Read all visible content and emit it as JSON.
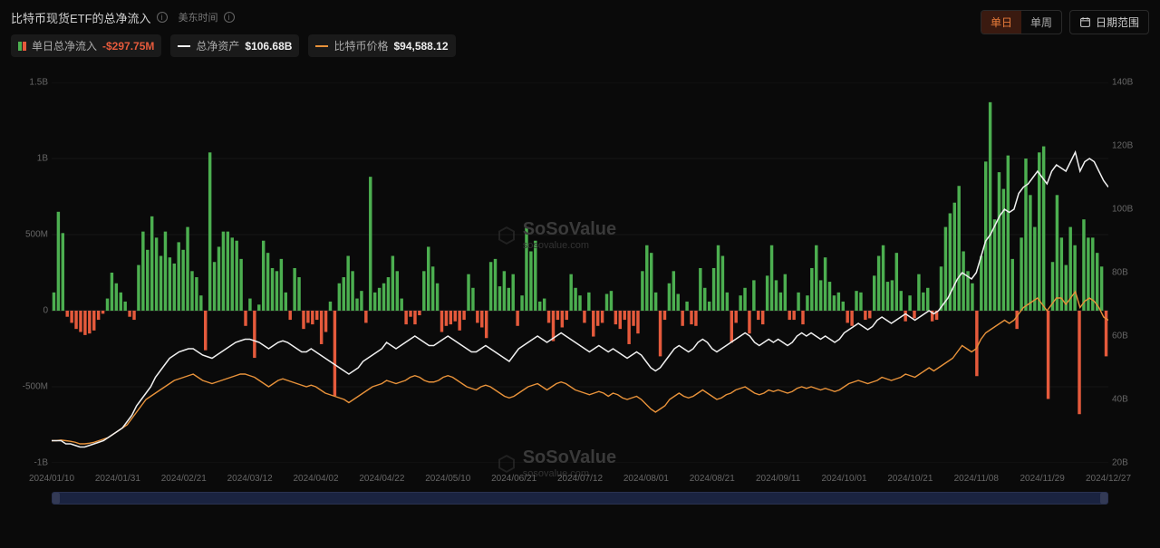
{
  "header": {
    "title": "比特币现货ETF的总净流入",
    "subtitle": "美东时间",
    "seg_daily": "单日",
    "seg_weekly": "单周",
    "range_label": "日期范围"
  },
  "legend": {
    "netflow_label": "单日总净流入",
    "netflow_value": "-$297.75M",
    "assets_label": "总净资产",
    "assets_value": "$106.68B",
    "price_label": "比特币价格",
    "price_value": "$94,588.12"
  },
  "chart": {
    "type": "bar+line-dual-axis",
    "background_color": "#0a0a0a",
    "grid_color": "#222222",
    "bar_pos_color": "#4caf50",
    "bar_neg_color": "#e55a3c",
    "line_assets_color": "#f0f0f0",
    "line_price_color": "#e8923a",
    "left_axis": {
      "label_color": "#666",
      "ticks": [
        {
          "v": 1500000000,
          "label": "1.5B"
        },
        {
          "v": 1000000000,
          "label": "1B"
        },
        {
          "v": 500000000,
          "label": "500M"
        },
        {
          "v": 0,
          "label": "0"
        },
        {
          "v": -500000000,
          "label": "-500M"
        },
        {
          "v": -1000000000,
          "label": "-1B"
        }
      ],
      "min": -1000000000,
      "max": 1500000000
    },
    "right_axis": {
      "label_color": "#666",
      "ticks": [
        {
          "v": 140000000000,
          "label": "140B"
        },
        {
          "v": 120000000000,
          "label": "120B"
        },
        {
          "v": 100000000000,
          "label": "100B"
        },
        {
          "v": 80000000000,
          "label": "80B"
        },
        {
          "v": 60000000000,
          "label": "60B"
        },
        {
          "v": 40000000000,
          "label": "40B"
        },
        {
          "v": 20000000000,
          "label": "20B"
        }
      ],
      "min": 20000000000,
      "max": 140000000000
    },
    "x_axis": {
      "labels": [
        "2024/01/10",
        "2024/01/31",
        "2024/02/21",
        "2024/03/12",
        "2024/04/02",
        "2024/04/22",
        "2024/05/10",
        "2024/06/21",
        "2024/07/12",
        "2024/08/01",
        "2024/08/21",
        "2024/09/11",
        "2024/10/01",
        "2024/10/21",
        "2024/11/08",
        "2024/11/29",
        "2024/12/27"
      ]
    },
    "bars": [
      120,
      650,
      510,
      -40,
      -80,
      -120,
      -140,
      -160,
      -150,
      -130,
      -60,
      -20,
      80,
      250,
      180,
      120,
      60,
      -40,
      -60,
      300,
      520,
      400,
      620,
      480,
      360,
      520,
      350,
      310,
      450,
      400,
      550,
      260,
      220,
      100,
      -260,
      1040,
      320,
      420,
      520,
      520,
      480,
      460,
      340,
      -100,
      80,
      -310,
      40,
      460,
      380,
      280,
      260,
      340,
      120,
      -60,
      280,
      220,
      -120,
      -80,
      -90,
      -60,
      -220,
      -140,
      60,
      -560,
      180,
      220,
      360,
      260,
      80,
      130,
      -80,
      880,
      120,
      150,
      180,
      220,
      360,
      260,
      80,
      -90,
      -40,
      -90,
      -30,
      260,
      420,
      290,
      180,
      -140,
      -100,
      -90,
      -70,
      -130,
      -60,
      240,
      150,
      -80,
      -110,
      -180,
      320,
      340,
      160,
      260,
      150,
      240,
      -100,
      100,
      550,
      390,
      460,
      60,
      80,
      -80,
      -200,
      -60,
      -110,
      -60,
      240,
      150,
      100,
      -80,
      120,
      -170,
      -100,
      -80,
      110,
      130,
      -90,
      -120,
      -60,
      -220,
      -100,
      -150,
      260,
      430,
      380,
      120,
      -300,
      -60,
      180,
      260,
      110,
      -100,
      60,
      -90,
      -100,
      280,
      150,
      60,
      280,
      430,
      360,
      120,
      -210,
      -80,
      100,
      150,
      -150,
      200,
      -60,
      -90,
      230,
      430,
      200,
      120,
      240,
      -60,
      -60,
      120,
      -90,
      100,
      280,
      430,
      200,
      350,
      190,
      100,
      120,
      60,
      -80,
      -100,
      130,
      120,
      -60,
      -50,
      230,
      360,
      430,
      190,
      200,
      380,
      130,
      -70,
      100,
      -50,
      240,
      120,
      150,
      -70,
      -60,
      290,
      550,
      640,
      710,
      820,
      390,
      260,
      180,
      -430,
      360,
      980,
      1370,
      600,
      910,
      800,
      1020,
      340,
      -120,
      480,
      1000,
      760,
      550,
      1040,
      1080,
      -580,
      320,
      760,
      480,
      300,
      550,
      430,
      -680,
      600,
      480,
      480,
      380,
      290,
      -300
    ],
    "line_assets": [
      27,
      27,
      27,
      26,
      26,
      25.5,
      25,
      25,
      25.5,
      26,
      26.5,
      27,
      28,
      29,
      30,
      31,
      33,
      35,
      38,
      40,
      42,
      44,
      47,
      49,
      51,
      53,
      54,
      55,
      55.5,
      56,
      56,
      55,
      54,
      53.5,
      53,
      54,
      55,
      56,
      57,
      58,
      58.5,
      59,
      59,
      58.5,
      58,
      57,
      56,
      57,
      58,
      58.5,
      58,
      57,
      56,
      55,
      55,
      56,
      55,
      54,
      53,
      52,
      51,
      50,
      49,
      48,
      49,
      50,
      52,
      53,
      54,
      55,
      56,
      58,
      57,
      56,
      57,
      58,
      59,
      60,
      59,
      58,
      57,
      57,
      58,
      59,
      60,
      59,
      58,
      57,
      56,
      55,
      55,
      56,
      57,
      56,
      55,
      54,
      53,
      52,
      54,
      56,
      57,
      58,
      59,
      60,
      59,
      58,
      59,
      60,
      61,
      60,
      59,
      58,
      57,
      56,
      55,
      56,
      57,
      56,
      55,
      56,
      55,
      54,
      53,
      54,
      55,
      54,
      52,
      50,
      49,
      50,
      52,
      54,
      56,
      57,
      56,
      55,
      56,
      58,
      59,
      58,
      56,
      55,
      56,
      57,
      58,
      59,
      60,
      61,
      60,
      58,
      57,
      58,
      59,
      58,
      59,
      58,
      57,
      58,
      60,
      61,
      60,
      61,
      60,
      59,
      60,
      59,
      58,
      59,
      61,
      62,
      63,
      64,
      63,
      62,
      63,
      65,
      66,
      65,
      64,
      65,
      66,
      67,
      66,
      65,
      66,
      67,
      68,
      67,
      68,
      70,
      72,
      75,
      78,
      80,
      79,
      78,
      80,
      85,
      90,
      92,
      95,
      98,
      100,
      99,
      100,
      105,
      107,
      108,
      110,
      112,
      110,
      108,
      112,
      114,
      113,
      112,
      115,
      118,
      112,
      115,
      116,
      115,
      112,
      109,
      107
    ],
    "line_price": [
      27,
      27,
      27.2,
      27,
      26.8,
      26.5,
      26,
      26,
      26.2,
      26.5,
      27,
      27.5,
      28,
      29,
      30,
      31,
      32,
      34,
      36,
      38,
      40,
      41,
      42,
      43,
      44,
      45,
      46,
      46.5,
      47,
      47.5,
      48,
      47,
      46,
      45.5,
      45,
      45.5,
      46,
      46.5,
      47,
      47.5,
      48,
      48,
      47.5,
      47,
      46,
      45,
      44,
      45,
      46,
      46.5,
      46,
      45.5,
      45,
      44.5,
      44,
      44.5,
      44,
      43,
      42,
      41.5,
      41,
      40.5,
      40,
      39,
      40,
      41,
      42,
      43,
      44,
      44.5,
      45,
      46,
      45.5,
      45,
      45.5,
      46,
      47,
      47.5,
      47,
      46,
      45.5,
      45.5,
      46,
      47,
      47.5,
      47,
      46,
      45,
      44,
      43.5,
      43,
      44,
      44.5,
      44,
      43,
      42,
      41,
      40.5,
      41,
      42,
      43,
      44,
      44.5,
      45,
      44,
      43,
      44,
      45,
      45.5,
      45,
      44,
      43,
      42.5,
      42,
      41.5,
      42,
      42.5,
      42,
      41,
      42,
      41.5,
      40.5,
      40,
      40.5,
      41,
      40,
      38.5,
      37,
      36,
      37,
      38,
      40,
      41,
      42,
      41,
      40.5,
      41,
      42,
      43,
      42,
      41,
      40,
      40.5,
      41.5,
      42,
      43,
      43.5,
      44,
      43,
      42,
      41.5,
      42,
      43,
      42.5,
      43,
      42.5,
      42,
      42.5,
      43.5,
      44,
      43.5,
      44,
      43.5,
      43,
      43.5,
      43,
      42.5,
      43,
      44,
      45,
      45.5,
      46,
      45.5,
      45,
      45.5,
      46,
      47,
      46.5,
      46,
      46.5,
      47,
      48,
      47.5,
      47,
      48,
      49,
      50,
      49,
      50,
      51,
      52,
      53,
      55,
      57,
      56,
      55,
      56,
      59,
      61,
      62,
      63,
      64,
      65,
      64,
      65,
      67,
      69,
      70,
      71,
      72,
      70,
      68,
      70,
      72,
      72,
      70,
      72,
      74,
      69,
      71,
      72,
      71,
      69,
      66,
      65
    ]
  },
  "watermark": {
    "brand": "SoSoValue",
    "url": "sosovalue.com"
  }
}
